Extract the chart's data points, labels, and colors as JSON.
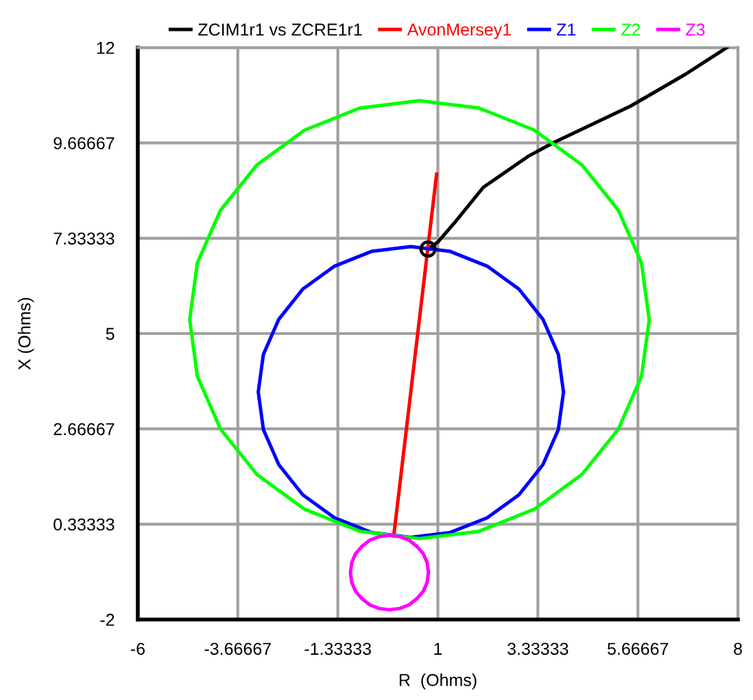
{
  "chart_data": {
    "type": "line",
    "xlabel": "R  (Ohms)",
    "ylabel": "X (Ohms)",
    "xlim": [
      -6,
      8
    ],
    "ylim": [
      -2,
      12
    ],
    "xticks": [
      -6,
      -3.66667,
      -1.33333,
      1,
      3.33333,
      5.66667,
      8
    ],
    "yticks": [
      -2,
      0.33333,
      2.66667,
      5,
      7.33333,
      9.66667,
      12
    ],
    "grid": true,
    "legend": "top",
    "marker": "none",
    "line_style": "solid",
    "series": [
      {
        "name": "ZCIM1r1 vs ZCRE1r1",
        "color": "#000000",
        "x": [
          0.77,
          1.0,
          1.41,
          2.06,
          3.11,
          3.69,
          5.5,
          6.78,
          7.74
        ],
        "values": [
          7.07,
          7.24,
          7.74,
          8.58,
          9.34,
          9.67,
          10.57,
          11.35,
          12.0
        ]
      },
      {
        "name": "AvonMersey1",
        "color": "#ff0000",
        "x": [
          -0.03,
          0.97
        ],
        "values": [
          0.04,
          8.9
        ]
      },
      {
        "name": "Z1",
        "color": "#0000ff",
        "x": [
          3.93,
          3.81,
          3.45,
          2.89,
          2.15,
          1.29,
          0.37,
          -0.55,
          -1.41,
          -2.15,
          -2.71,
          -3.07,
          -3.19,
          -3.07,
          -2.71,
          -2.15,
          -1.41,
          -0.55,
          0.37,
          1.29,
          2.15,
          2.89,
          3.45,
          3.81,
          3.93
        ],
        "values": [
          3.57,
          4.49,
          5.35,
          6.09,
          6.65,
          7.01,
          7.13,
          7.01,
          6.65,
          6.09,
          5.35,
          4.49,
          3.57,
          2.65,
          1.79,
          1.05,
          0.49,
          0.13,
          0.01,
          0.13,
          0.49,
          1.05,
          1.79,
          2.65,
          3.56
        ]
      },
      {
        "name": "Z2",
        "color": "#00ff00",
        "x": [
          5.93,
          5.75,
          5.21,
          4.36,
          3.25,
          1.96,
          0.57,
          -0.82,
          -2.11,
          -3.22,
          -4.07,
          -4.61,
          -4.79,
          -4.61,
          -4.07,
          -3.22,
          -2.11,
          -0.82,
          0.57,
          1.96,
          3.25,
          4.36,
          5.21,
          5.75,
          5.93
        ],
        "values": [
          5.34,
          6.73,
          8.02,
          9.13,
          9.98,
          10.52,
          10.7,
          10.52,
          9.98,
          9.13,
          8.02,
          6.73,
          5.34,
          3.95,
          2.66,
          1.55,
          0.7,
          0.16,
          -0.02,
          0.16,
          0.7,
          1.55,
          2.66,
          3.95,
          5.33
        ]
      },
      {
        "name": "Z3",
        "color": "#ff00ff",
        "x": [
          0.78,
          0.75,
          0.66,
          0.51,
          0.33,
          0.11,
          -0.13,
          -0.37,
          -0.59,
          -0.77,
          -0.92,
          -1.01,
          -1.04,
          -1.01,
          -0.92,
          -0.77,
          -0.59,
          -0.37,
          -0.13,
          0.11,
          0.33,
          0.51,
          0.66,
          0.75,
          0.78
        ],
        "values": [
          -0.85,
          -0.61,
          -0.39,
          -0.21,
          -0.06,
          0.03,
          0.06,
          0.03,
          -0.06,
          -0.21,
          -0.39,
          -0.61,
          -0.85,
          -1.09,
          -1.31,
          -1.49,
          -1.64,
          -1.73,
          -1.76,
          -1.73,
          -1.64,
          -1.49,
          -1.31,
          -1.09,
          -0.84
        ]
      },
      {
        "type": "scatter",
        "color": "#000000",
        "marker": "circle",
        "x": [
          0.77
        ],
        "values": [
          7.07
        ]
      }
    ]
  }
}
